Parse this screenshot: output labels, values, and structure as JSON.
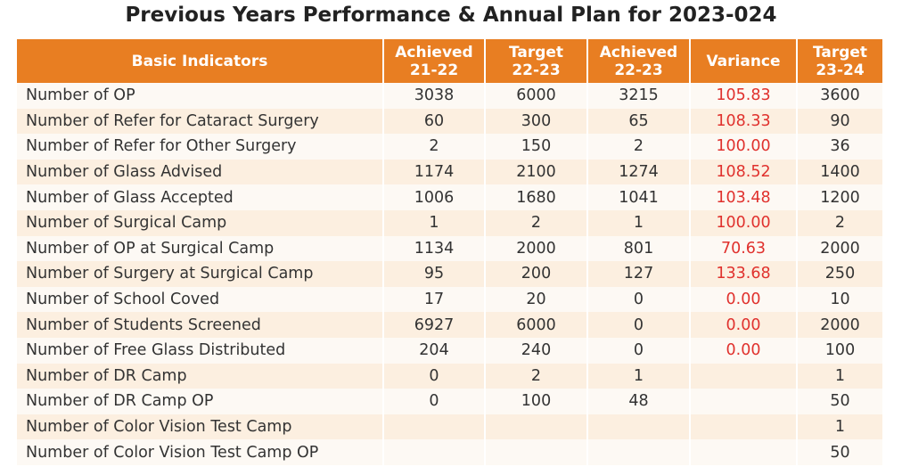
{
  "title": "Previous Years Performance & Annual Plan for 2023-024",
  "colors": {
    "header": "#e87e22",
    "variance_text": "#e0312d",
    "row_light": "#fdf9f4",
    "row_dark": "#fcefe0"
  },
  "table": {
    "headers": [
      {
        "line1": "Basic Indicators",
        "line2": ""
      },
      {
        "line1": "Achieved",
        "line2": "21-22"
      },
      {
        "line1": "Target",
        "line2": "22-23"
      },
      {
        "line1": "Achieved",
        "line2": "22-23"
      },
      {
        "line1": "Variance",
        "line2": ""
      },
      {
        "line1": "Target",
        "line2": "23-24"
      }
    ],
    "rows": [
      [
        "Number of OP",
        "3038",
        "6000",
        "3215",
        "105.83",
        "3600"
      ],
      [
        "Number of Refer for Cataract Surgery",
        "60",
        "300",
        "65",
        "108.33",
        "90"
      ],
      [
        "Number of Refer for Other Surgery",
        "2",
        "150",
        "2",
        "100.00",
        "36"
      ],
      [
        "Number of Glass Advised",
        "1174",
        "2100",
        "1274",
        "108.52",
        "1400"
      ],
      [
        "Number of Glass Accepted",
        "1006",
        "1680",
        "1041",
        "103.48",
        "1200"
      ],
      [
        "Number of Surgical  Camp",
        "1",
        "2",
        "1",
        "100.00",
        "2"
      ],
      [
        "Number of OP at Surgical Camp",
        "1134",
        "2000",
        "801",
        "70.63",
        "2000"
      ],
      [
        "Number of Surgery at Surgical Camp",
        "95",
        "200",
        "127",
        "133.68",
        "250"
      ],
      [
        "Number of School Coved",
        "17",
        "20",
        "0",
        "0.00",
        "10"
      ],
      [
        "Number of Students Screened",
        "6927",
        "6000",
        "0",
        "0.00",
        "2000"
      ],
      [
        "Number of Free Glass Distributed",
        "204",
        "240",
        "0",
        "0.00",
        "100"
      ],
      [
        "Number of DR Camp",
        "0",
        "2",
        "1",
        "",
        "1"
      ],
      [
        "Number of DR Camp OP",
        "0",
        "100",
        "48",
        "",
        "50"
      ],
      [
        "Number of Color Vision Test Camp",
        "",
        "",
        "",
        "",
        "1"
      ],
      [
        "Number of Color Vision Test Camp OP",
        "",
        "",
        "",
        "",
        "50"
      ]
    ]
  }
}
